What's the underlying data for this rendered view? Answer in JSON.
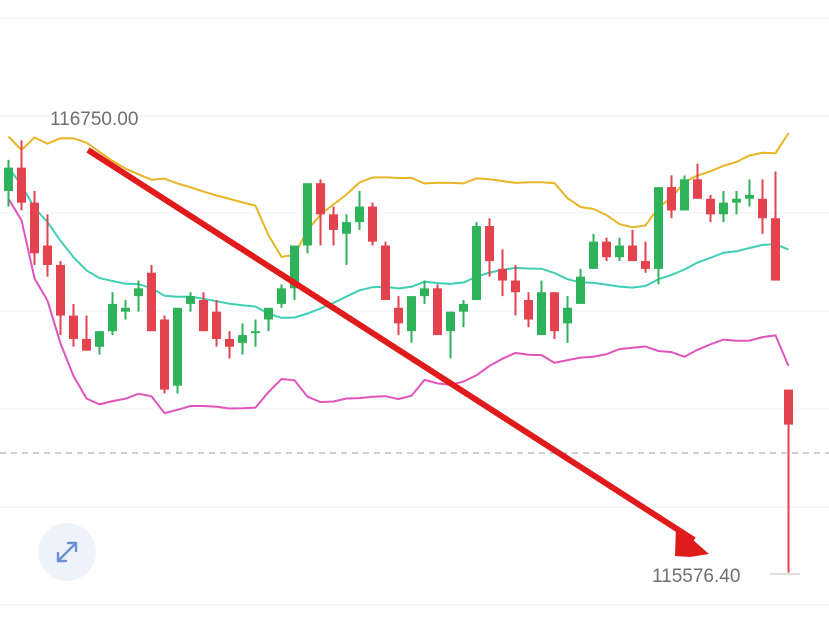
{
  "chart_data": {
    "type": "candlestick",
    "price_labels": {
      "high": "116750.00",
      "low": "115576.40"
    },
    "colors": {
      "up": "#2fb35a",
      "down": "#e2434f",
      "upper_band": "#e8b526",
      "middle_band": "#3fcfb5",
      "lower_band": "#e254bd",
      "arrow": "#e01b1b",
      "grid": "#eef0f3",
      "dashed": "#9aa1ab"
    },
    "candles": [
      [
        116560,
        116640,
        116520,
        116620
      ],
      [
        116620,
        116690,
        116510,
        116530
      ],
      [
        116530,
        116560,
        116370,
        116400
      ],
      [
        116420,
        116500,
        116340,
        116370
      ],
      [
        116370,
        116380,
        116190,
        116240
      ],
      [
        116240,
        116270,
        116160,
        116180
      ],
      [
        116180,
        116240,
        116150,
        116150
      ],
      [
        116160,
        116200,
        116140,
        116200
      ],
      [
        116200,
        116300,
        116190,
        116270
      ],
      [
        116250,
        116280,
        116230,
        116260
      ],
      [
        116290,
        116330,
        116250,
        116310
      ],
      [
        116350,
        116370,
        116200,
        116200
      ],
      [
        116230,
        116240,
        116040,
        116050
      ],
      [
        116060,
        116260,
        116040,
        116260
      ],
      [
        116270,
        116300,
        116250,
        116290
      ],
      [
        116280,
        116300,
        116200,
        116200
      ],
      [
        116250,
        116280,
        116160,
        116180
      ],
      [
        116180,
        116200,
        116130,
        116160
      ],
      [
        116170,
        116220,
        116140,
        116190
      ],
      [
        116200,
        116230,
        116160,
        116200
      ],
      [
        116230,
        116260,
        116200,
        116260
      ],
      [
        116270,
        116320,
        116260,
        116310
      ],
      [
        116310,
        116420,
        116280,
        116420
      ],
      [
        116420,
        116580,
        116400,
        116580
      ],
      [
        116580,
        116590,
        116420,
        116500
      ],
      [
        116500,
        116520,
        116420,
        116460
      ],
      [
        116450,
        116500,
        116370,
        116480
      ],
      [
        116480,
        116560,
        116460,
        116520
      ],
      [
        116520,
        116530,
        116420,
        116430
      ],
      [
        116420,
        116430,
        116280,
        116280
      ],
      [
        116260,
        116290,
        116190,
        116220
      ],
      [
        116200,
        116290,
        116170,
        116290
      ],
      [
        116290,
        116330,
        116270,
        116310
      ],
      [
        116310,
        116320,
        116190,
        116190
      ],
      [
        116200,
        116250,
        116130,
        116250
      ],
      [
        116250,
        116280,
        116210,
        116270
      ],
      [
        116280,
        116480,
        116280,
        116470
      ],
      [
        116470,
        116490,
        116340,
        116380
      ],
      [
        116360,
        116410,
        116290,
        116330
      ],
      [
        116330,
        116370,
        116240,
        116300
      ],
      [
        116280,
        116300,
        116210,
        116230
      ],
      [
        116190,
        116330,
        116190,
        116300
      ],
      [
        116300,
        116300,
        116180,
        116200
      ],
      [
        116220,
        116290,
        116170,
        116260
      ],
      [
        116270,
        116360,
        116270,
        116340
      ],
      [
        116360,
        116450,
        116360,
        116430
      ],
      [
        116430,
        116440,
        116380,
        116390
      ],
      [
        116390,
        116440,
        116380,
        116420
      ],
      [
        116420,
        116460,
        116380,
        116380
      ],
      [
        116380,
        116430,
        116350,
        116360
      ],
      [
        116360,
        116570,
        116320,
        116570
      ],
      [
        116570,
        116600,
        116490,
        116510
      ],
      [
        116510,
        116600,
        116510,
        116590
      ],
      [
        116590,
        116630,
        116540,
        116540
      ],
      [
        116540,
        116550,
        116480,
        116500
      ],
      [
        116500,
        116560,
        116480,
        116530
      ],
      [
        116530,
        116560,
        116500,
        116540
      ],
      [
        116540,
        116590,
        116520,
        116550
      ],
      [
        116540,
        116590,
        116450,
        116490
      ],
      [
        116490,
        116610,
        116330,
        116330
      ],
      [
        116050,
        116050,
        115580,
        115960
      ]
    ]
  }
}
